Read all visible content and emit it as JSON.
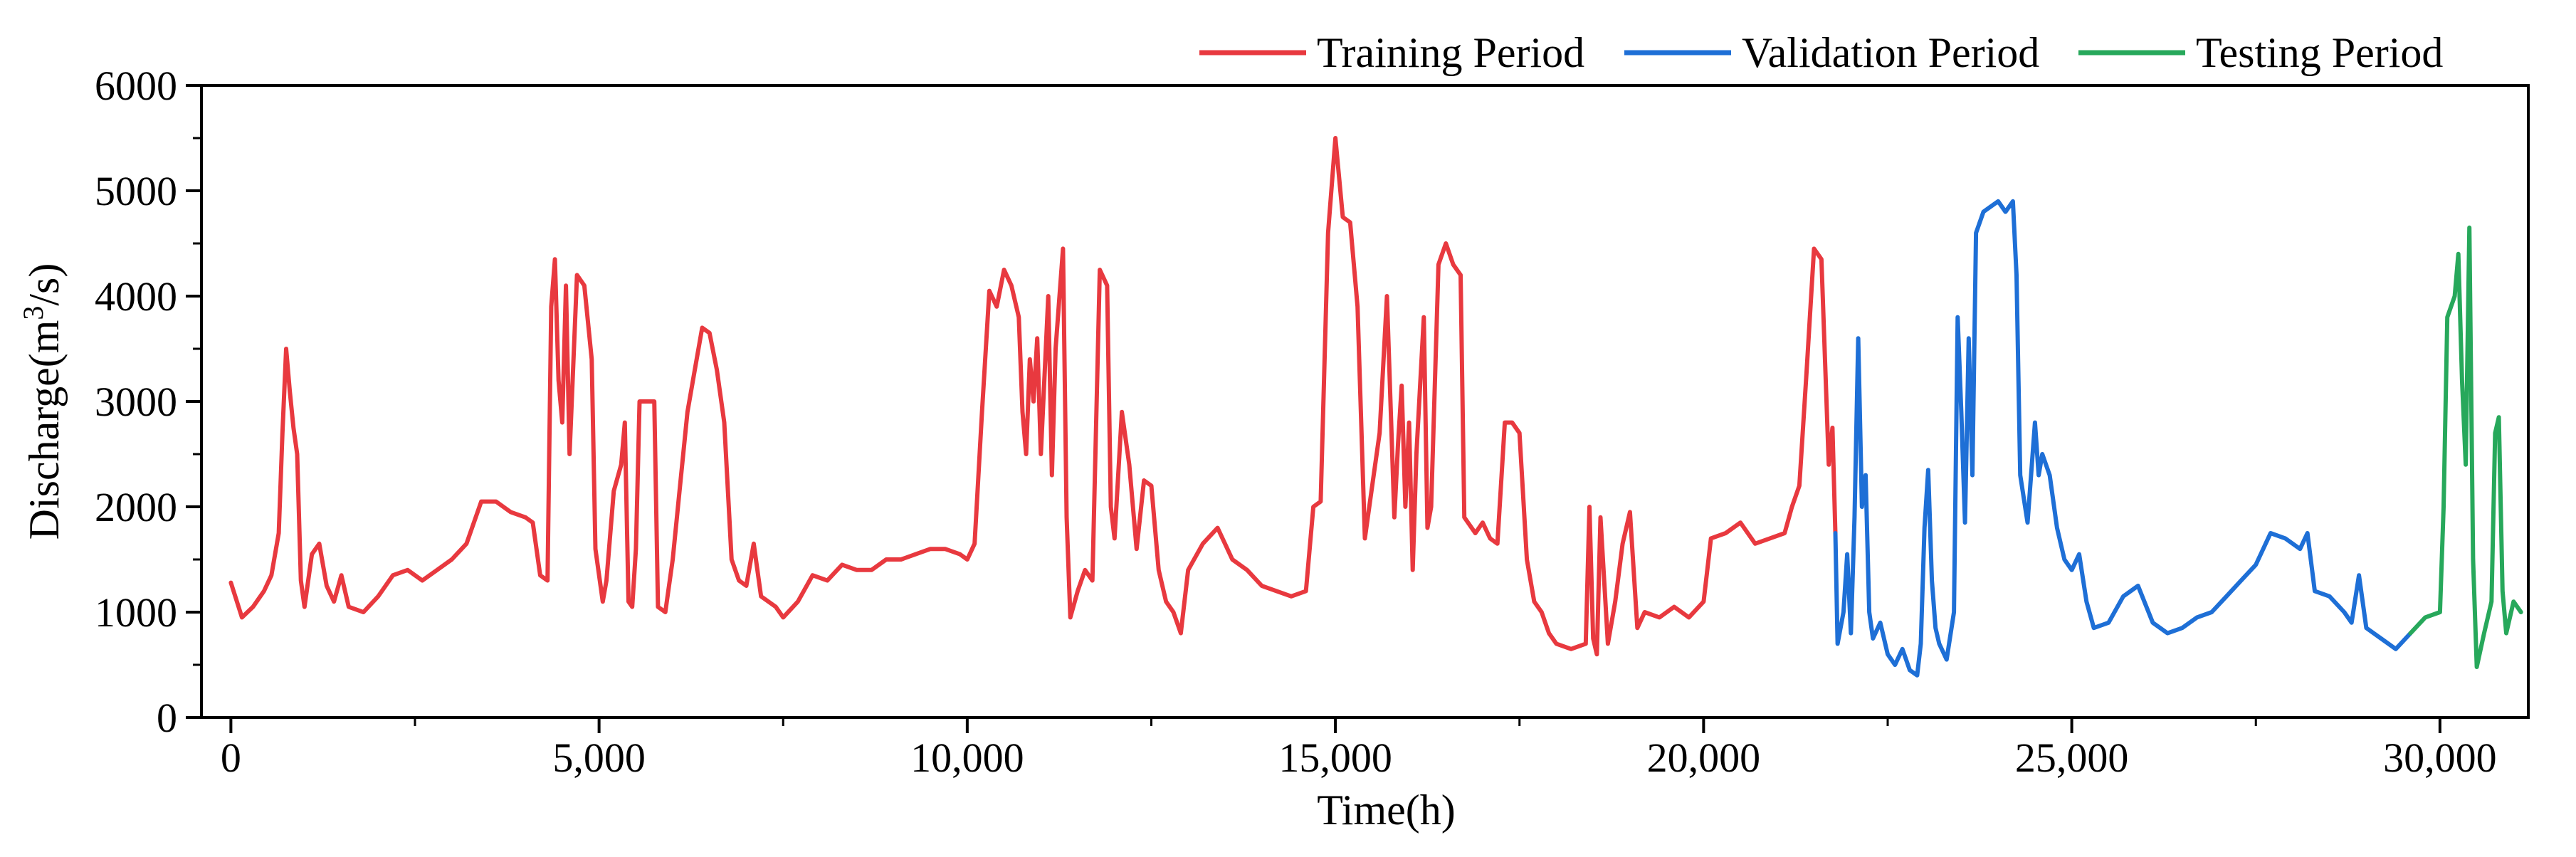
{
  "chart_data": {
    "type": "line",
    "title": "",
    "xlabel": "Time(h)",
    "ylabel_main": "Discharge(m",
    "ylabel_sup": "3",
    "ylabel_tail": "/s)",
    "xlim": [
      -400,
      31200
    ],
    "ylim": [
      0,
      6000
    ],
    "xticks": [
      0,
      5000,
      10000,
      15000,
      20000,
      25000,
      30000
    ],
    "xtick_labels": [
      "0",
      "5,000",
      "10,000",
      "15,000",
      "20,000",
      "25,000",
      "30,000"
    ],
    "yticks": [
      0,
      1000,
      2000,
      3000,
      4000,
      5000,
      6000
    ],
    "ytick_labels": [
      "0",
      "1000",
      "2000",
      "3000",
      "4000",
      "5000",
      "6000"
    ],
    "legend_position": "top-right",
    "series": [
      {
        "name": "Training Period",
        "color": "#e8393f",
        "points": [
          [
            0,
            1280
          ],
          [
            150,
            950
          ],
          [
            300,
            1050
          ],
          [
            450,
            1200
          ],
          [
            550,
            1350
          ],
          [
            650,
            1750
          ],
          [
            700,
            2700
          ],
          [
            750,
            3500
          ],
          [
            800,
            3100
          ],
          [
            850,
            2750
          ],
          [
            900,
            2500
          ],
          [
            950,
            1300
          ],
          [
            1000,
            1050
          ],
          [
            1100,
            1550
          ],
          [
            1200,
            1650
          ],
          [
            1300,
            1250
          ],
          [
            1400,
            1100
          ],
          [
            1500,
            1350
          ],
          [
            1600,
            1050
          ],
          [
            1800,
            1000
          ],
          [
            2000,
            1150
          ],
          [
            2200,
            1350
          ],
          [
            2400,
            1400
          ],
          [
            2600,
            1300
          ],
          [
            2800,
            1400
          ],
          [
            3000,
            1500
          ],
          [
            3200,
            1650
          ],
          [
            3400,
            2050
          ],
          [
            3600,
            2050
          ],
          [
            3800,
            1950
          ],
          [
            4000,
            1900
          ],
          [
            4100,
            1850
          ],
          [
            4200,
            1350
          ],
          [
            4300,
            1300
          ],
          [
            4350,
            3900
          ],
          [
            4400,
            4350
          ],
          [
            4450,
            3200
          ],
          [
            4500,
            2800
          ],
          [
            4550,
            4100
          ],
          [
            4600,
            2500
          ],
          [
            4700,
            4200
          ],
          [
            4800,
            4100
          ],
          [
            4900,
            3400
          ],
          [
            4950,
            1600
          ],
          [
            5050,
            1100
          ],
          [
            5100,
            1300
          ],
          [
            5200,
            2150
          ],
          [
            5300,
            2400
          ],
          [
            5350,
            2800
          ],
          [
            5400,
            1100
          ],
          [
            5450,
            1050
          ],
          [
            5500,
            1600
          ],
          [
            5550,
            3000
          ],
          [
            5650,
            3000
          ],
          [
            5750,
            3000
          ],
          [
            5800,
            1050
          ],
          [
            5900,
            1000
          ],
          [
            6000,
            1500
          ],
          [
            6100,
            2200
          ],
          [
            6200,
            2900
          ],
          [
            6300,
            3300
          ],
          [
            6400,
            3700
          ],
          [
            6500,
            3650
          ],
          [
            6600,
            3300
          ],
          [
            6700,
            2800
          ],
          [
            6800,
            1500
          ],
          [
            6900,
            1300
          ],
          [
            7000,
            1250
          ],
          [
            7100,
            1650
          ],
          [
            7200,
            1150
          ],
          [
            7400,
            1050
          ],
          [
            7500,
            950
          ],
          [
            7700,
            1100
          ],
          [
            7900,
            1350
          ],
          [
            8100,
            1300
          ],
          [
            8300,
            1450
          ],
          [
            8500,
            1400
          ],
          [
            8700,
            1400
          ],
          [
            8900,
            1500
          ],
          [
            9100,
            1500
          ],
          [
            9300,
            1550
          ],
          [
            9500,
            1600
          ],
          [
            9700,
            1600
          ],
          [
            9900,
            1550
          ],
          [
            10000,
            1500
          ],
          [
            10100,
            1650
          ],
          [
            10200,
            2900
          ],
          [
            10300,
            4050
          ],
          [
            10400,
            3900
          ],
          [
            10500,
            4250
          ],
          [
            10600,
            4100
          ],
          [
            10700,
            3800
          ],
          [
            10750,
            2900
          ],
          [
            10800,
            2500
          ],
          [
            10850,
            3400
          ],
          [
            10900,
            3000
          ],
          [
            10950,
            3600
          ],
          [
            11000,
            2500
          ],
          [
            11050,
            3250
          ],
          [
            11100,
            4000
          ],
          [
            11150,
            2300
          ],
          [
            11200,
            3500
          ],
          [
            11300,
            4450
          ],
          [
            11350,
            1900
          ],
          [
            11400,
            950
          ],
          [
            11500,
            1200
          ],
          [
            11600,
            1400
          ],
          [
            11700,
            1300
          ],
          [
            11800,
            4250
          ],
          [
            11900,
            4100
          ],
          [
            11950,
            2000
          ],
          [
            12000,
            1700
          ],
          [
            12100,
            2900
          ],
          [
            12200,
            2400
          ],
          [
            12300,
            1600
          ],
          [
            12400,
            2250
          ],
          [
            12500,
            2200
          ],
          [
            12600,
            1400
          ],
          [
            12700,
            1100
          ],
          [
            12800,
            1000
          ],
          [
            12900,
            800
          ],
          [
            13000,
            1400
          ],
          [
            13200,
            1650
          ],
          [
            13400,
            1800
          ],
          [
            13600,
            1500
          ],
          [
            13800,
            1400
          ],
          [
            14000,
            1250
          ],
          [
            14200,
            1200
          ],
          [
            14400,
            1150
          ],
          [
            14600,
            1200
          ],
          [
            14700,
            2000
          ],
          [
            14800,
            2050
          ],
          [
            14900,
            4600
          ],
          [
            15000,
            5500
          ],
          [
            15100,
            4750
          ],
          [
            15200,
            4700
          ],
          [
            15300,
            3900
          ],
          [
            15400,
            1700
          ],
          [
            15500,
            2200
          ],
          [
            15600,
            2700
          ],
          [
            15700,
            4000
          ],
          [
            15800,
            1900
          ],
          [
            15850,
            2600
          ],
          [
            15900,
            3150
          ],
          [
            15950,
            2000
          ],
          [
            16000,
            2800
          ],
          [
            16050,
            1400
          ],
          [
            16100,
            2500
          ],
          [
            16200,
            3800
          ],
          [
            16250,
            1800
          ],
          [
            16300,
            2000
          ],
          [
            16400,
            4300
          ],
          [
            16500,
            4500
          ],
          [
            16600,
            4300
          ],
          [
            16700,
            4200
          ],
          [
            16750,
            1900
          ],
          [
            16900,
            1750
          ],
          [
            17000,
            1850
          ],
          [
            17100,
            1700
          ],
          [
            17200,
            1650
          ],
          [
            17300,
            2800
          ],
          [
            17400,
            2800
          ],
          [
            17500,
            2700
          ],
          [
            17600,
            1500
          ],
          [
            17700,
            1100
          ],
          [
            17800,
            1000
          ],
          [
            17900,
            800
          ],
          [
            18000,
            700
          ],
          [
            18200,
            650
          ],
          [
            18400,
            700
          ],
          [
            18450,
            2000
          ],
          [
            18500,
            750
          ],
          [
            18550,
            600
          ],
          [
            18600,
            1900
          ],
          [
            18700,
            700
          ],
          [
            18800,
            1100
          ],
          [
            18900,
            1650
          ],
          [
            19000,
            1950
          ],
          [
            19100,
            850
          ],
          [
            19200,
            1000
          ],
          [
            19400,
            950
          ],
          [
            19600,
            1050
          ],
          [
            19800,
            950
          ],
          [
            20000,
            1100
          ],
          [
            20100,
            1700
          ],
          [
            20300,
            1750
          ],
          [
            20500,
            1850
          ],
          [
            20700,
            1650
          ],
          [
            20900,
            1700
          ],
          [
            21100,
            1750
          ],
          [
            21200,
            2000
          ],
          [
            21300,
            2200
          ],
          [
            21400,
            3300
          ],
          [
            21500,
            4450
          ],
          [
            21600,
            4350
          ],
          [
            21700,
            2400
          ],
          [
            21750,
            2750
          ],
          [
            21790,
            1750
          ]
        ]
      },
      {
        "name": "Validation Period",
        "color": "#1e6fd6",
        "points": [
          [
            21790,
            1750
          ],
          [
            21820,
            700
          ],
          [
            21900,
            1000
          ],
          [
            21950,
            1550
          ],
          [
            22000,
            800
          ],
          [
            22050,
            1900
          ],
          [
            22100,
            3600
          ],
          [
            22150,
            2000
          ],
          [
            22200,
            2300
          ],
          [
            22250,
            1000
          ],
          [
            22300,
            750
          ],
          [
            22400,
            900
          ],
          [
            22500,
            600
          ],
          [
            22600,
            500
          ],
          [
            22700,
            650
          ],
          [
            22800,
            450
          ],
          [
            22900,
            400
          ],
          [
            22950,
            700
          ],
          [
            23000,
            1800
          ],
          [
            23050,
            2350
          ],
          [
            23100,
            1300
          ],
          [
            23150,
            850
          ],
          [
            23200,
            700
          ],
          [
            23300,
            550
          ],
          [
            23400,
            1000
          ],
          [
            23450,
            3800
          ],
          [
            23500,
            2900
          ],
          [
            23550,
            1850
          ],
          [
            23600,
            3600
          ],
          [
            23650,
            2300
          ],
          [
            23700,
            4600
          ],
          [
            23800,
            4800
          ],
          [
            23900,
            4850
          ],
          [
            24000,
            4900
          ],
          [
            24100,
            4800
          ],
          [
            24200,
            4900
          ],
          [
            24250,
            4200
          ],
          [
            24300,
            2300
          ],
          [
            24400,
            1850
          ],
          [
            24500,
            2800
          ],
          [
            24550,
            2300
          ],
          [
            24600,
            2500
          ],
          [
            24700,
            2300
          ],
          [
            24800,
            1800
          ],
          [
            24900,
            1500
          ],
          [
            25000,
            1400
          ],
          [
            25100,
            1550
          ],
          [
            25200,
            1100
          ],
          [
            25300,
            850
          ],
          [
            25500,
            900
          ],
          [
            25700,
            1150
          ],
          [
            25900,
            1250
          ],
          [
            26100,
            900
          ],
          [
            26300,
            800
          ],
          [
            26500,
            850
          ],
          [
            26700,
            950
          ],
          [
            26900,
            1000
          ],
          [
            27100,
            1150
          ],
          [
            27300,
            1300
          ],
          [
            27500,
            1450
          ],
          [
            27700,
            1750
          ],
          [
            27900,
            1700
          ],
          [
            28100,
            1600
          ],
          [
            28200,
            1750
          ],
          [
            28300,
            1200
          ],
          [
            28500,
            1150
          ],
          [
            28700,
            1000
          ],
          [
            28800,
            900
          ],
          [
            28900,
            1350
          ],
          [
            29000,
            850
          ],
          [
            29200,
            750
          ],
          [
            29400,
            650
          ],
          [
            29600,
            800
          ]
        ]
      },
      {
        "name": "Testing Period",
        "color": "#27a85b",
        "points": [
          [
            29600,
            800
          ],
          [
            29800,
            950
          ],
          [
            30000,
            1000
          ],
          [
            30050,
            2000
          ],
          [
            30100,
            3800
          ],
          [
            30200,
            4000
          ],
          [
            30250,
            4400
          ],
          [
            30300,
            3200
          ],
          [
            30350,
            2400
          ],
          [
            30400,
            4650
          ],
          [
            30450,
            1500
          ],
          [
            30500,
            480
          ],
          [
            30600,
            800
          ],
          [
            30700,
            1100
          ],
          [
            30750,
            2700
          ],
          [
            30800,
            2850
          ],
          [
            30850,
            1200
          ],
          [
            30900,
            800
          ],
          [
            31000,
            1100
          ],
          [
            31100,
            1000
          ]
        ]
      }
    ]
  }
}
